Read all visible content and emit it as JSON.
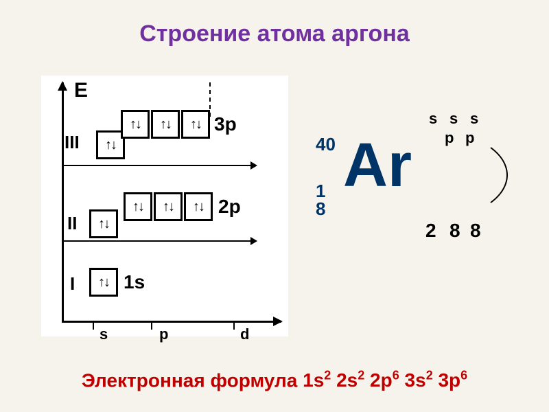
{
  "title": "Строение атома аргона",
  "diagram": {
    "e_label": "E",
    "levels": [
      {
        "roman": "I",
        "y": 300,
        "s_label": "1s",
        "orbitals": {
          "s": [
            "↑↓"
          ]
        }
      },
      {
        "roman": "II",
        "y": 210,
        "p_label": "2p",
        "orbitals": {
          "s": [
            "↑↓"
          ],
          "p": [
            "↑↓",
            "↑↓",
            "↑↓"
          ]
        }
      },
      {
        "roman": "III",
        "y": 90,
        "p_label": "3p",
        "orbitals": {
          "s": [
            "↑↓"
          ],
          "p": [
            "↑↓",
            "↑↓",
            "↑↓"
          ]
        }
      }
    ],
    "x_ticks": [
      "s",
      "p",
      "d"
    ]
  },
  "element": {
    "symbol": "Ar",
    "mass": "40",
    "atomic_split": [
      "1",
      "8"
    ],
    "shell_labels_s": [
      "s",
      "s",
      "s"
    ],
    "shell_labels_p": [
      "p",
      "p"
    ],
    "shell_counts": [
      "2",
      "8",
      "8"
    ]
  },
  "formula_label": "Электронная формула",
  "formula_parts": [
    {
      "base": "1s",
      "sup": "2"
    },
    {
      "base": "2s",
      "sup": "2"
    },
    {
      "base": "2p",
      "sup": "6"
    },
    {
      "base": "3s",
      "sup": "2"
    },
    {
      "base": "3p",
      "sup": "6"
    }
  ],
  "colors": {
    "title": "#7030a0",
    "formula": "#c00000",
    "element": "#003366",
    "bg": "#f5f3eb"
  }
}
